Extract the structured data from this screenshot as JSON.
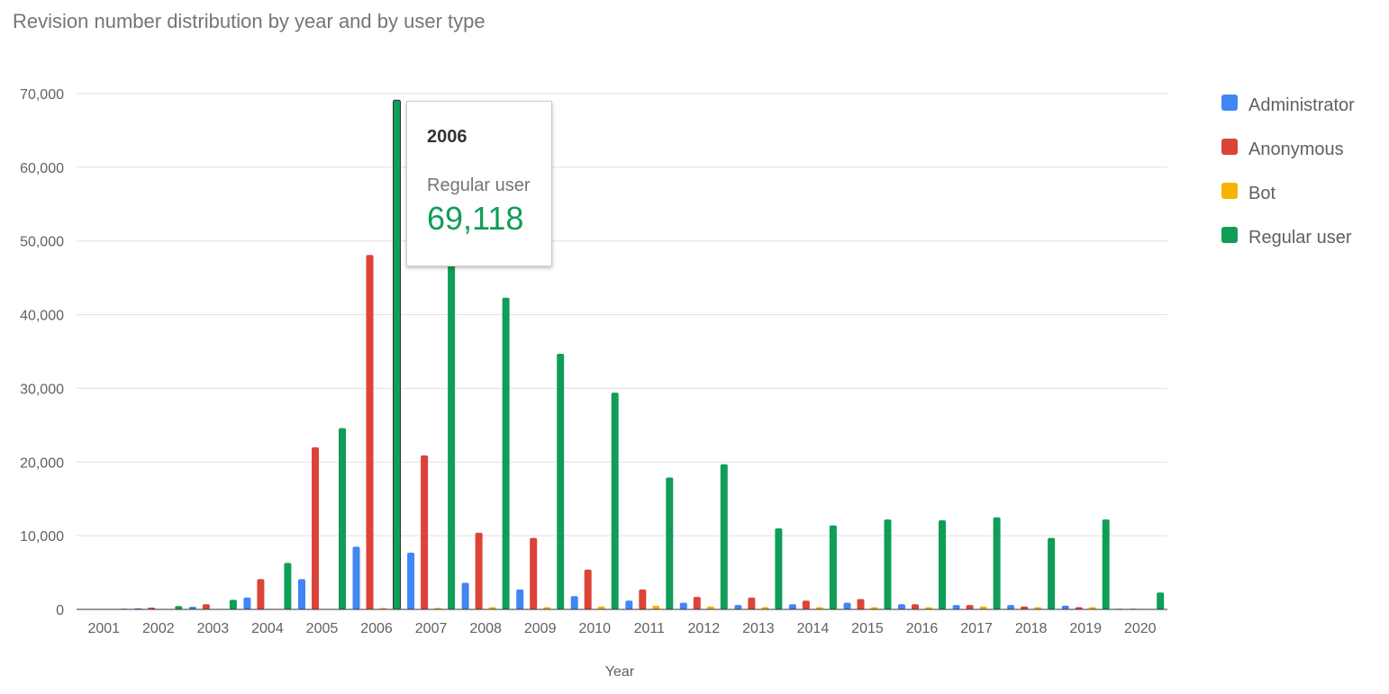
{
  "chart_data": {
    "type": "bar",
    "title": "Revision number distribution by year and by user type",
    "xlabel": "Year",
    "ylabel": "",
    "ylim": [
      0,
      70000
    ],
    "yticks": [
      0,
      10000,
      20000,
      30000,
      40000,
      50000,
      60000,
      70000
    ],
    "ytick_labels": [
      "0",
      "10,000",
      "20,000",
      "30,000",
      "40,000",
      "50,000",
      "60,000",
      "70,000"
    ],
    "grid": true,
    "legend_position": "right",
    "categories": [
      "2001",
      "2002",
      "2003",
      "2004",
      "2005",
      "2006",
      "2007",
      "2008",
      "2009",
      "2010",
      "2011",
      "2012",
      "2013",
      "2014",
      "2015",
      "2016",
      "2017",
      "2018",
      "2019",
      "2020"
    ],
    "series": [
      {
        "name": "Administrator",
        "color": "#4285f4",
        "values": [
          20,
          150,
          350,
          1600,
          4100,
          8500,
          7700,
          3600,
          2700,
          1800,
          1200,
          900,
          600,
          700,
          900,
          700,
          600,
          600,
          500,
          100
        ]
      },
      {
        "name": "Anonymous",
        "color": "#db4437",
        "values": [
          50,
          250,
          700,
          4100,
          22000,
          48100,
          20900,
          10400,
          9700,
          5400,
          2700,
          1700,
          1600,
          1200,
          1400,
          700,
          600,
          400,
          300,
          100
        ]
      },
      {
        "name": "Bot",
        "color": "#f4b400",
        "values": [
          0,
          0,
          0,
          0,
          0,
          200,
          200,
          300,
          300,
          400,
          500,
          400,
          300,
          300,
          300,
          300,
          400,
          300,
          300,
          50
        ]
      },
      {
        "name": "Regular user",
        "color": "#0f9d58",
        "values": [
          100,
          450,
          1300,
          6300,
          24600,
          69118,
          47000,
          42300,
          34700,
          29400,
          17900,
          19700,
          11000,
          11400,
          12200,
          12100,
          12500,
          9700,
          12200,
          2300
        ]
      }
    ],
    "tooltip": {
      "category": "2006",
      "series": "Regular user",
      "value_label": "69,118"
    }
  }
}
